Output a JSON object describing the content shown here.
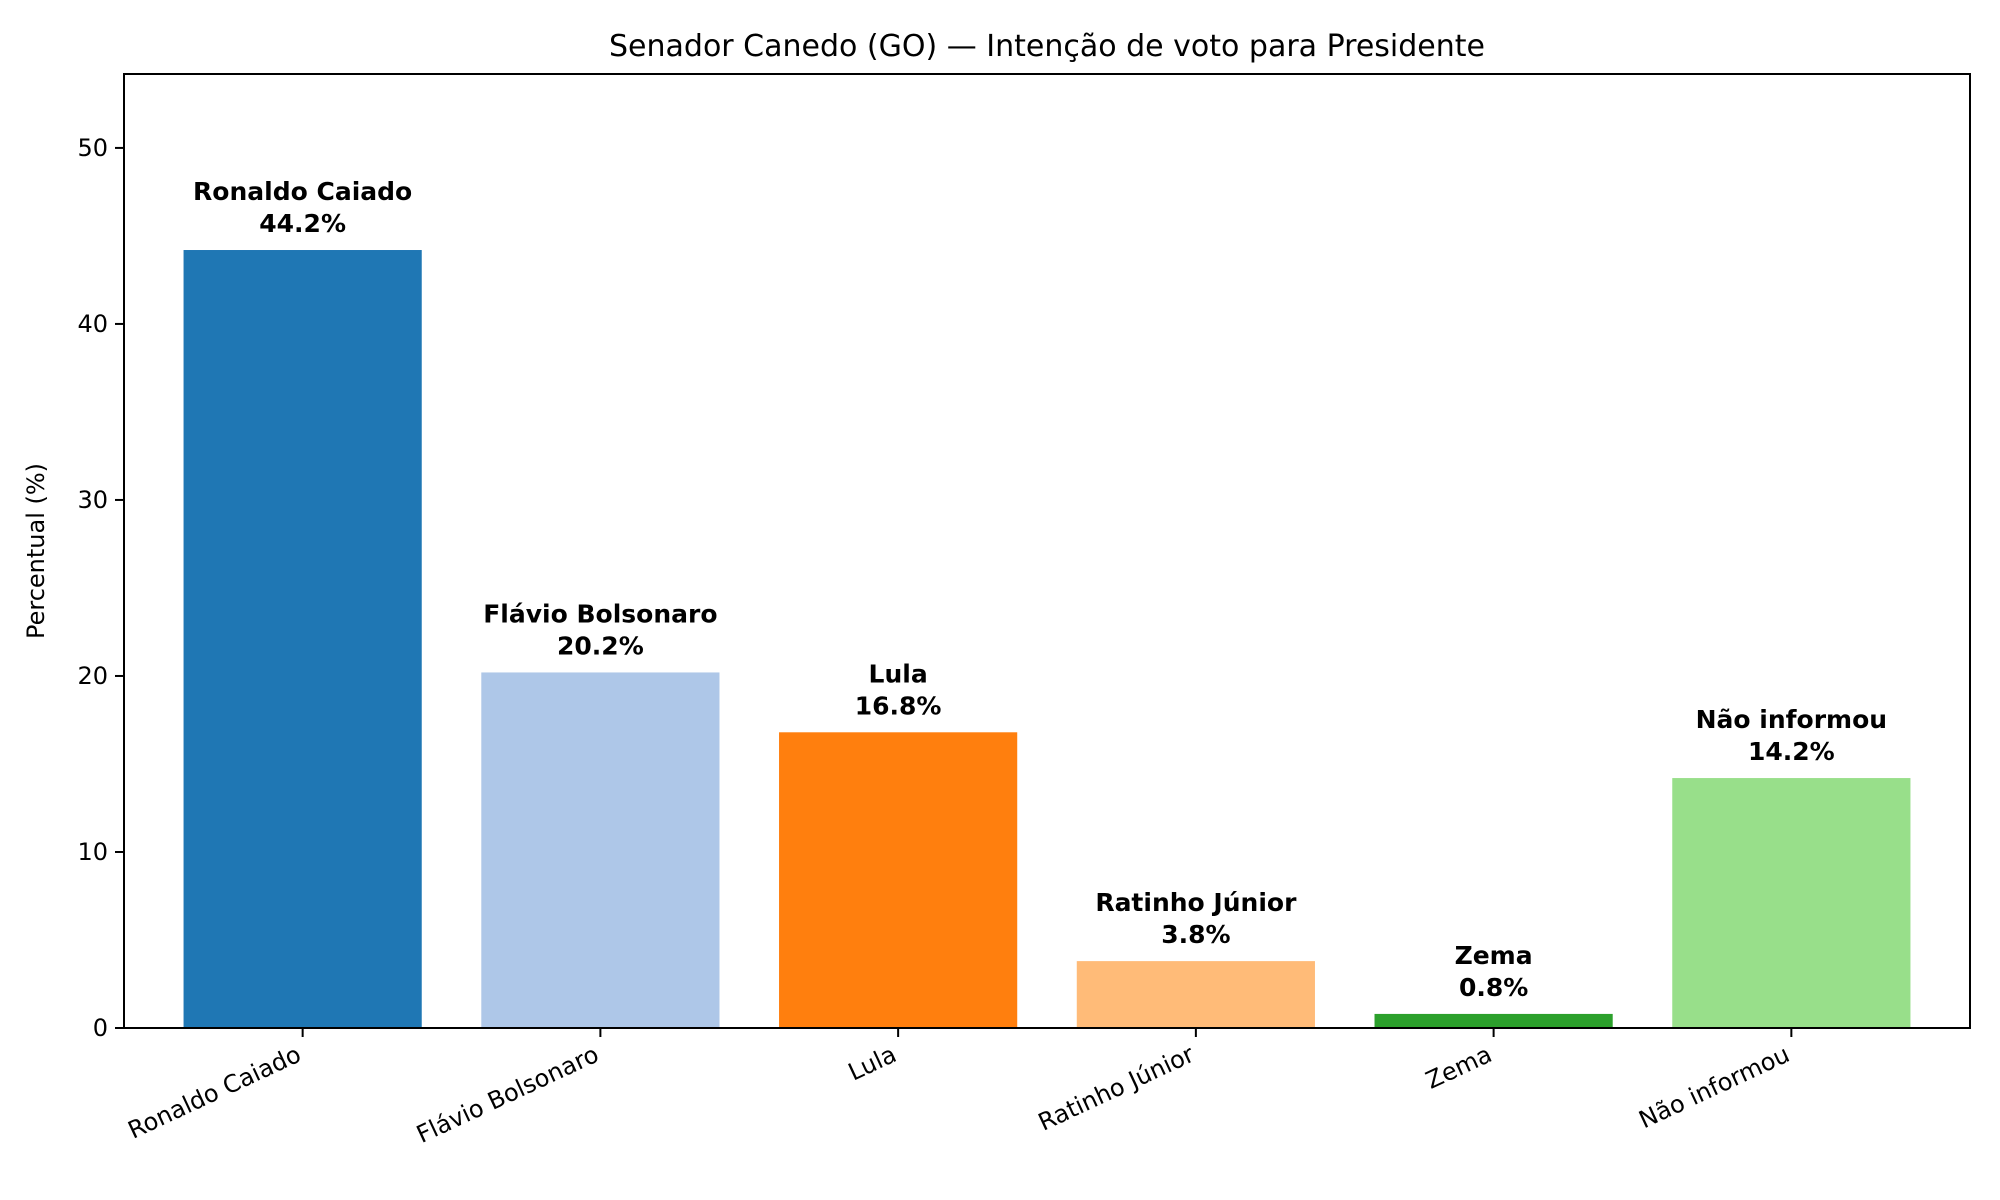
{
  "chart_data": {
    "type": "bar",
    "title": "Senador Canedo (GO) — Intenção de voto para Presidente",
    "xlabel": "",
    "ylabel": "Percentual (%)",
    "ylim": [
      0,
      54.2
    ],
    "yticks": [
      0,
      10,
      20,
      30,
      40,
      50
    ],
    "grid": false,
    "legend": "none",
    "categories": [
      "Ronaldo Caiado",
      "Flávio Bolsonaro",
      "Lula",
      "Ratinho Júnior",
      "Zema",
      "Não informou"
    ],
    "values": [
      44.2,
      20.2,
      16.8,
      3.8,
      0.8,
      14.2
    ],
    "value_labels": [
      "44.2%",
      "20.2%",
      "16.8%",
      "3.8%",
      "0.8%",
      "14.2%"
    ],
    "colors": [
      "#1f77b4",
      "#aec7e8",
      "#ff7f0e",
      "#ffbb78",
      "#2ca02c",
      "#98df8a"
    ],
    "xtick_rotation_deg": 25
  }
}
